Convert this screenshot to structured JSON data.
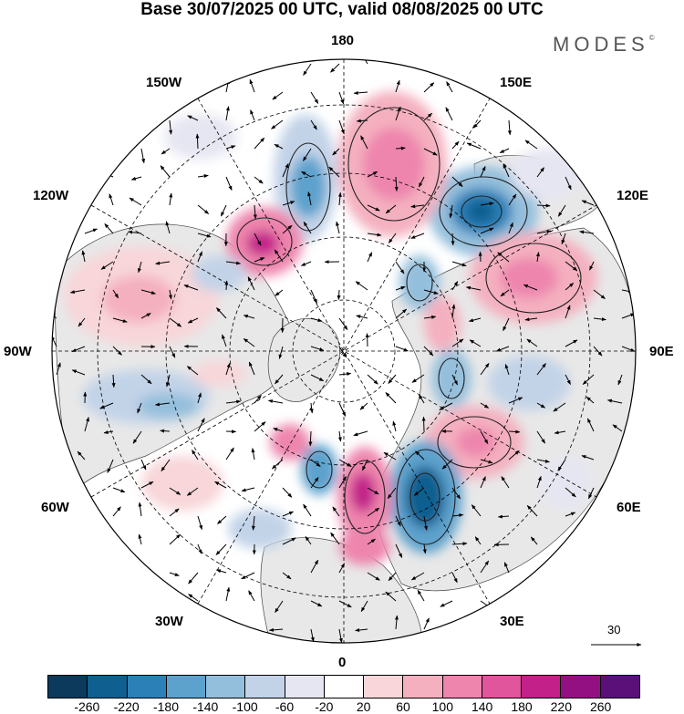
{
  "title": "Base 30/07/2025 00 UTC, valid 08/08/2025 00 UTC",
  "brand": "MODES",
  "brand_mark": "©",
  "longitude_labels": {
    "top": "180",
    "top_right": "150E",
    "right_upper": "120E",
    "right": "90E",
    "right_lower": "60E",
    "bottom_right": "30E",
    "bottom": "0",
    "bottom_left": "30W",
    "left_lower": "60W",
    "left": "90W",
    "left_upper": "120W",
    "top_left": "150W"
  },
  "vector_scale_label": "30",
  "colorbar": {
    "colors": [
      "#0b3a5c",
      "#0f5f90",
      "#2b80b8",
      "#5da2cd",
      "#94bfdc",
      "#c2d3e8",
      "#e6e6f2",
      "#ffffff",
      "#f8d6d9",
      "#f4b0bf",
      "#ee85ad",
      "#e0559c",
      "#c3208a",
      "#931083",
      "#5a1078"
    ],
    "ticks": [
      "-260",
      "-220",
      "-180",
      "-140",
      "-100",
      "-60",
      "-20",
      "20",
      "60",
      "100",
      "140",
      "180",
      "220",
      "260"
    ]
  }
}
